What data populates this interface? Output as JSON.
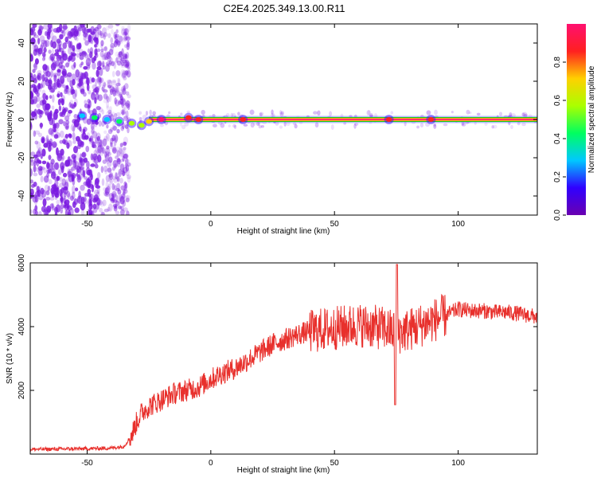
{
  "title": "C2E4.2025.349.13.00.R11",
  "colors": {
    "snr_line": "#e8302c",
    "ridge_core": "#ff2e6a",
    "ridge_edge": "#18c818",
    "scatter": "#7a1ae0",
    "axis": "#000000"
  },
  "colormap": [
    "#6a00b0",
    "#3000ff",
    "#00c8ff",
    "#00ff60",
    "#aaff00",
    "#ffd000",
    "#ff2020",
    "#ff1070"
  ],
  "chart_data": [
    {
      "type": "heatmap",
      "xlabel": "Height of straight line (km)",
      "ylabel": "Frequency (Hz)",
      "xlim": [
        -73,
        132
      ],
      "ylim": [
        -50,
        50
      ],
      "xticks": [
        -50,
        0,
        50,
        100
      ],
      "yticks": [
        -40,
        -20,
        0,
        20,
        40
      ],
      "ridge_frequency_hz": 0,
      "noise_region_x": [
        -73,
        -33
      ],
      "ridge_points": [
        {
          "x": -52,
          "y": 2,
          "amplitude": 0.35
        },
        {
          "x": -47,
          "y": 1,
          "amplitude": 0.4
        },
        {
          "x": -42,
          "y": 0,
          "amplitude": 0.35
        },
        {
          "x": -37,
          "y": -1,
          "amplitude": 0.4
        },
        {
          "x": -32,
          "y": -2,
          "amplitude": 0.5
        },
        {
          "x": -28,
          "y": -3,
          "amplitude": 0.55
        },
        {
          "x": -25,
          "y": -1,
          "amplitude": 0.7
        },
        {
          "x": -20,
          "y": 0,
          "amplitude": 0.95
        },
        {
          "x": -9,
          "y": 1,
          "amplitude": 0.85
        },
        {
          "x": -5,
          "y": 0,
          "amplitude": 0.9
        },
        {
          "x": 13,
          "y": 0,
          "amplitude": 0.9
        },
        {
          "x": 72,
          "y": 0,
          "amplitude": 0.9
        },
        {
          "x": 89,
          "y": 0,
          "amplitude": 0.9
        }
      ],
      "colorbar": {
        "label": "Normalized spectral amplitude",
        "range": [
          0,
          1
        ],
        "ticks": [
          0.0,
          0.2,
          0.4,
          0.6,
          0.8
        ]
      }
    },
    {
      "type": "line",
      "xlabel": "Height of straight line (km)",
      "ylabel": "SNR (10 * v/v)",
      "xlim": [
        -73,
        132
      ],
      "ylim": [
        0,
        6000
      ],
      "xticks": [
        -50,
        0,
        50,
        100
      ],
      "yticks": [
        2000,
        4000,
        6000
      ],
      "series": [
        {
          "x": [
            -73,
            -60,
            -50,
            -40,
            -35,
            -32,
            -30,
            -28,
            -25,
            -20,
            -15,
            -10,
            -5,
            0,
            5,
            10,
            15,
            20,
            25,
            30,
            35,
            40,
            45,
            50,
            55,
            60,
            65,
            70,
            75,
            80,
            85,
            90,
            95,
            100,
            105,
            110,
            115,
            120,
            125,
            132
          ],
          "values": [
            150,
            160,
            170,
            190,
            250,
            600,
            1000,
            1300,
            1500,
            1700,
            1900,
            2000,
            2100,
            2350,
            2550,
            2700,
            2950,
            3200,
            3450,
            3600,
            3750,
            3850,
            3900,
            3950,
            4000,
            4050,
            4000,
            3950,
            3800,
            3900,
            4050,
            4200,
            4350,
            4550,
            4500,
            4500,
            4450,
            4450,
            4400,
            4300
          ]
        }
      ]
    }
  ]
}
